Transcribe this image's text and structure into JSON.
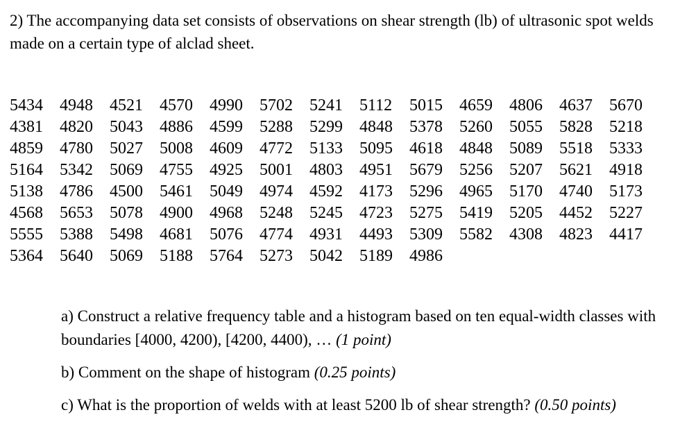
{
  "page": {
    "background_color": "#ffffff",
    "text_color": "#000000"
  },
  "problem": {
    "statement": "2) The accompanying data set consists of observations on shear strength (lb) of ultrasonic spot welds made on a certain type of alclad sheet."
  },
  "data_table": {
    "rows": [
      [
        5434,
        4948,
        4521,
        4570,
        4990,
        5702,
        5241,
        5112,
        5015,
        4659,
        4806,
        4637,
        5670
      ],
      [
        4381,
        4820,
        5043,
        4886,
        4599,
        5288,
        5299,
        4848,
        5378,
        5260,
        5055,
        5828,
        5218
      ],
      [
        4859,
        4780,
        5027,
        5008,
        4609,
        4772,
        5133,
        5095,
        4618,
        4848,
        5089,
        5518,
        5333
      ],
      [
        5164,
        5342,
        5069,
        4755,
        4925,
        5001,
        4803,
        4951,
        5679,
        5256,
        5207,
        5621,
        4918
      ],
      [
        5138,
        4786,
        4500,
        5461,
        5049,
        4974,
        4592,
        4173,
        5296,
        4965,
        5170,
        4740,
        5173
      ],
      [
        4568,
        5653,
        5078,
        4900,
        4968,
        5248,
        5245,
        4723,
        5275,
        5419,
        5205,
        4452,
        5227
      ],
      [
        5555,
        5388,
        5498,
        4681,
        5076,
        4774,
        4931,
        4493,
        5309,
        5582,
        4308,
        4823,
        4417
      ],
      [
        5364,
        5640,
        5069,
        5188,
        5764,
        5273,
        5042,
        5189,
        4986
      ]
    ]
  },
  "questions": [
    {
      "text": "a) Construct a relative frequency table and a histogram based on ten equal-width classes with boundaries [4000, 4200), [4200, 4400), …",
      "points": "(1 point)"
    },
    {
      "text": "b) Comment on the shape of histogram",
      "points": "(0.25 points)"
    },
    {
      "text": "c) What is the proportion of welds with at least 5200 lb of shear strength?",
      "points": "(0.50 points)"
    }
  ]
}
